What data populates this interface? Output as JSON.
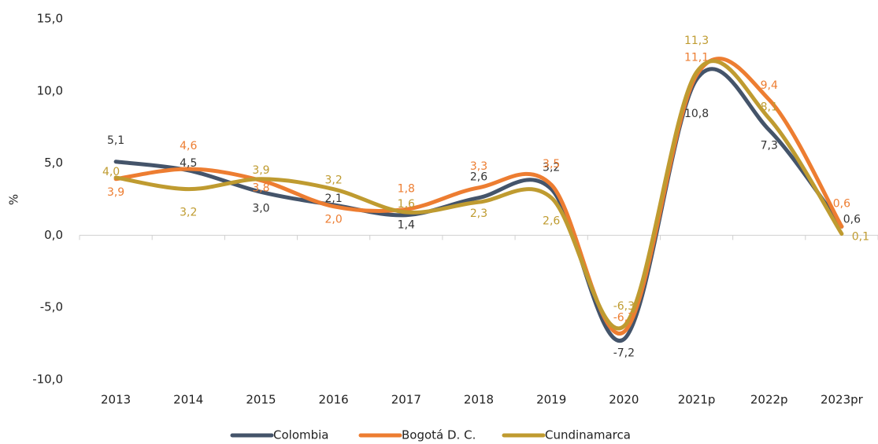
{
  "chart_data": {
    "type": "line",
    "y_label": "%",
    "categories": [
      "2013",
      "2014",
      "2015",
      "2016",
      "2017",
      "2018",
      "2019",
      "2020",
      "2021p",
      "2022p",
      "2023pr"
    ],
    "series": [
      {
        "name": "Colombia",
        "color": "#44546a",
        "values": [
          5.1,
          4.5,
          3.0,
          2.1,
          1.4,
          2.6,
          3.2,
          -7.2,
          10.8,
          7.3,
          0.6
        ],
        "value_labels": [
          "5,1",
          "4,5",
          "3,0",
          "2,1",
          "1,4",
          "2,6",
          "3,2",
          "-7,2",
          "10,8",
          "7,3",
          "0,6"
        ]
      },
      {
        "name": "Bogotá D. C.",
        "color": "#ed7d31",
        "values": [
          3.9,
          4.6,
          3.8,
          2.0,
          1.8,
          3.3,
          3.5,
          -6.7,
          11.1,
          9.4,
          0.6
        ],
        "value_labels": [
          "3,9",
          "4,6",
          "3,8",
          "2,0",
          "1,8",
          "3,3",
          "3,5",
          "-6,7",
          "11,1",
          "9,4",
          "0,6"
        ]
      },
      {
        "name": "Cundinamarca",
        "color": "#bf9b30",
        "values": [
          4.0,
          3.2,
          3.9,
          3.2,
          1.6,
          2.3,
          2.6,
          -6.3,
          11.3,
          8.1,
          0.1
        ],
        "value_labels": [
          "4,0",
          "3,2",
          "3,9",
          "3,2",
          "1,6",
          "2,3",
          "2,6",
          "-6,3",
          "11,3",
          "8,1",
          "0,1"
        ]
      }
    ],
    "ylim": [
      -10,
      15
    ],
    "yticks": [
      {
        "value": -10,
        "label": "-10,0"
      },
      {
        "value": -5,
        "label": "-5,0"
      },
      {
        "value": 0,
        "label": "0,0"
      },
      {
        "value": 5,
        "label": "5,0"
      },
      {
        "value": 10,
        "label": "10,0"
      },
      {
        "value": 15,
        "label": "15,0"
      }
    ],
    "legend": "bottom"
  }
}
